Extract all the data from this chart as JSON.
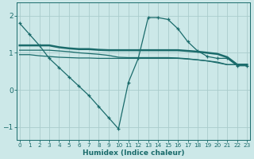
{
  "xlabel": "Humidex (Indice chaleur)",
  "background_color": "#cce8e8",
  "grid_color": "#aacccc",
  "line_color": "#1a6b6b",
  "x_values": [
    0,
    1,
    2,
    3,
    4,
    5,
    6,
    7,
    8,
    9,
    10,
    11,
    12,
    13,
    14,
    15,
    16,
    17,
    18,
    19,
    20,
    21,
    22,
    23
  ],
  "line1_y": [
    1.8,
    1.5,
    1.2,
    0.85,
    0.6,
    0.35,
    0.1,
    -0.15,
    -0.45,
    -0.75,
    -1.05,
    0.2,
    0.85,
    1.95,
    1.95,
    1.9,
    1.65,
    1.3,
    1.05,
    0.9,
    0.85,
    0.85,
    0.65,
    0.65
  ],
  "line2_y": [
    1.2,
    1.2,
    1.2,
    1.2,
    1.15,
    1.12,
    1.1,
    1.1,
    1.08,
    1.07,
    1.07,
    1.07,
    1.07,
    1.07,
    1.07,
    1.07,
    1.07,
    1.05,
    1.03,
    1.0,
    0.97,
    0.88,
    0.68,
    0.68
  ],
  "line3_y": [
    0.95,
    0.95,
    0.92,
    0.9,
    0.88,
    0.87,
    0.86,
    0.86,
    0.85,
    0.85,
    0.85,
    0.85,
    0.85,
    0.85,
    0.85,
    0.85,
    0.85,
    0.83,
    0.81,
    0.78,
    0.75,
    0.68,
    0.68,
    0.68
  ],
  "line4_y": [
    1.07,
    1.07,
    1.07,
    1.07,
    1.05,
    1.03,
    1.0,
    0.98,
    0.96,
    0.93,
    0.88,
    0.87,
    0.87,
    0.87,
    0.87,
    0.87,
    0.86,
    0.84,
    0.81,
    0.78,
    0.73,
    0.68,
    0.68,
    0.68
  ],
  "ylim": [
    -1.35,
    2.35
  ],
  "yticks": [
    -1,
    0,
    1,
    2
  ],
  "xticks": [
    0,
    1,
    2,
    3,
    4,
    5,
    6,
    7,
    8,
    9,
    10,
    11,
    12,
    13,
    14,
    15,
    16,
    17,
    18,
    19,
    20,
    21,
    22,
    23
  ],
  "xlim": [
    -0.3,
    23.3
  ]
}
